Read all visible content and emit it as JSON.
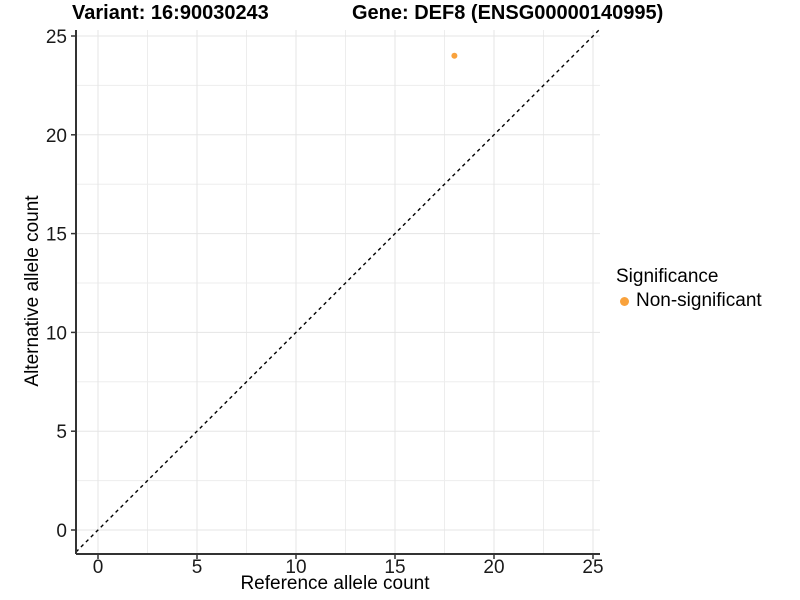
{
  "chart_data": {
    "type": "scatter",
    "title_left": "Variant: 16:90030243",
    "title_right": "Gene: DEF8 (ENSG00000140995)",
    "xlabel": "Reference allele count",
    "ylabel": "Alternative allele count",
    "xlim": [
      0,
      25
    ],
    "ylim": [
      0,
      25
    ],
    "x_ticks": [
      0,
      5,
      10,
      15,
      20,
      25
    ],
    "y_ticks": [
      0,
      5,
      10,
      15,
      20,
      25
    ],
    "grid": true,
    "legend_position": "right",
    "series": [
      {
        "name": "Non-significant",
        "color": "#F9A23C",
        "points": [
          {
            "x": 18,
            "y": 24
          }
        ]
      }
    ],
    "reference_line": {
      "slope": 1,
      "intercept": 0,
      "style": "dashed",
      "color": "#000000"
    },
    "legend": {
      "title": "Significance",
      "items": [
        {
          "label": "Non-significant",
          "color": "#F9A23C"
        }
      ]
    }
  }
}
